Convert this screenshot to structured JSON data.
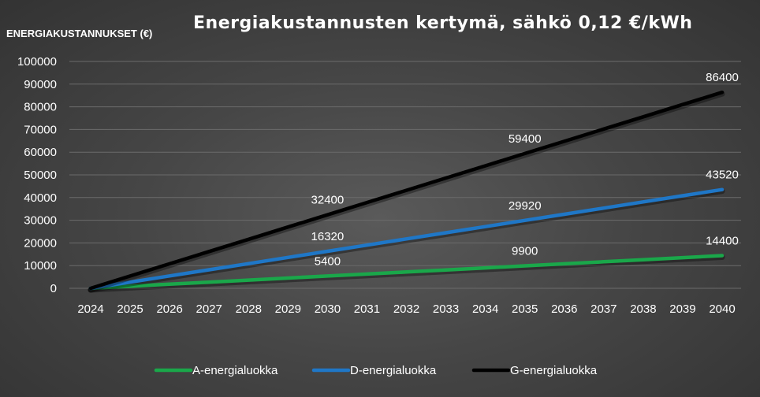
{
  "chart_data": {
    "type": "line",
    "title": "Energiakustannusten kertymä, sähkö 0,12 €/kWh",
    "ylabel": "ENERGIAKUSTANNUKSET (€)",
    "xlabel": "",
    "ylim": [
      0,
      100000
    ],
    "ytick_step": 10000,
    "grid": true,
    "legend_position": "bottom",
    "categories": [
      "2024",
      "2025",
      "2026",
      "2027",
      "2028",
      "2029",
      "2030",
      "2031",
      "2032",
      "2033",
      "2034",
      "2035",
      "2036",
      "2037",
      "2038",
      "2039",
      "2040"
    ],
    "series": [
      {
        "name": "A-energialuokka",
        "color": "#1aa74a",
        "values": [
          0,
          900,
          1800,
          2700,
          3600,
          4500,
          5400,
          6300,
          7200,
          8100,
          9000,
          9900,
          10800,
          11700,
          12600,
          13500,
          14400
        ],
        "labels": [
          {
            "index": 6,
            "text": "5400"
          },
          {
            "index": 11,
            "text": "9900"
          },
          {
            "index": 16,
            "text": "14400"
          }
        ]
      },
      {
        "name": "D-energialuokka",
        "color": "#1f77c7",
        "values": [
          0,
          2720,
          5440,
          8160,
          10880,
          13600,
          16320,
          19040,
          21760,
          24480,
          27200,
          29920,
          32640,
          35360,
          38080,
          40800,
          43520
        ],
        "labels": [
          {
            "index": 6,
            "text": "16320"
          },
          {
            "index": 11,
            "text": "29920"
          },
          {
            "index": 16,
            "text": "43520"
          }
        ]
      },
      {
        "name": "G-energialuokka",
        "color": "#000000",
        "values": [
          0,
          5400,
          10800,
          16200,
          21600,
          27000,
          32400,
          37800,
          43200,
          48600,
          54000,
          59400,
          64800,
          70200,
          75600,
          81000,
          86400
        ],
        "labels": [
          {
            "index": 6,
            "text": "32400"
          },
          {
            "index": 11,
            "text": "59400"
          },
          {
            "index": 16,
            "text": "86400"
          }
        ]
      }
    ]
  }
}
